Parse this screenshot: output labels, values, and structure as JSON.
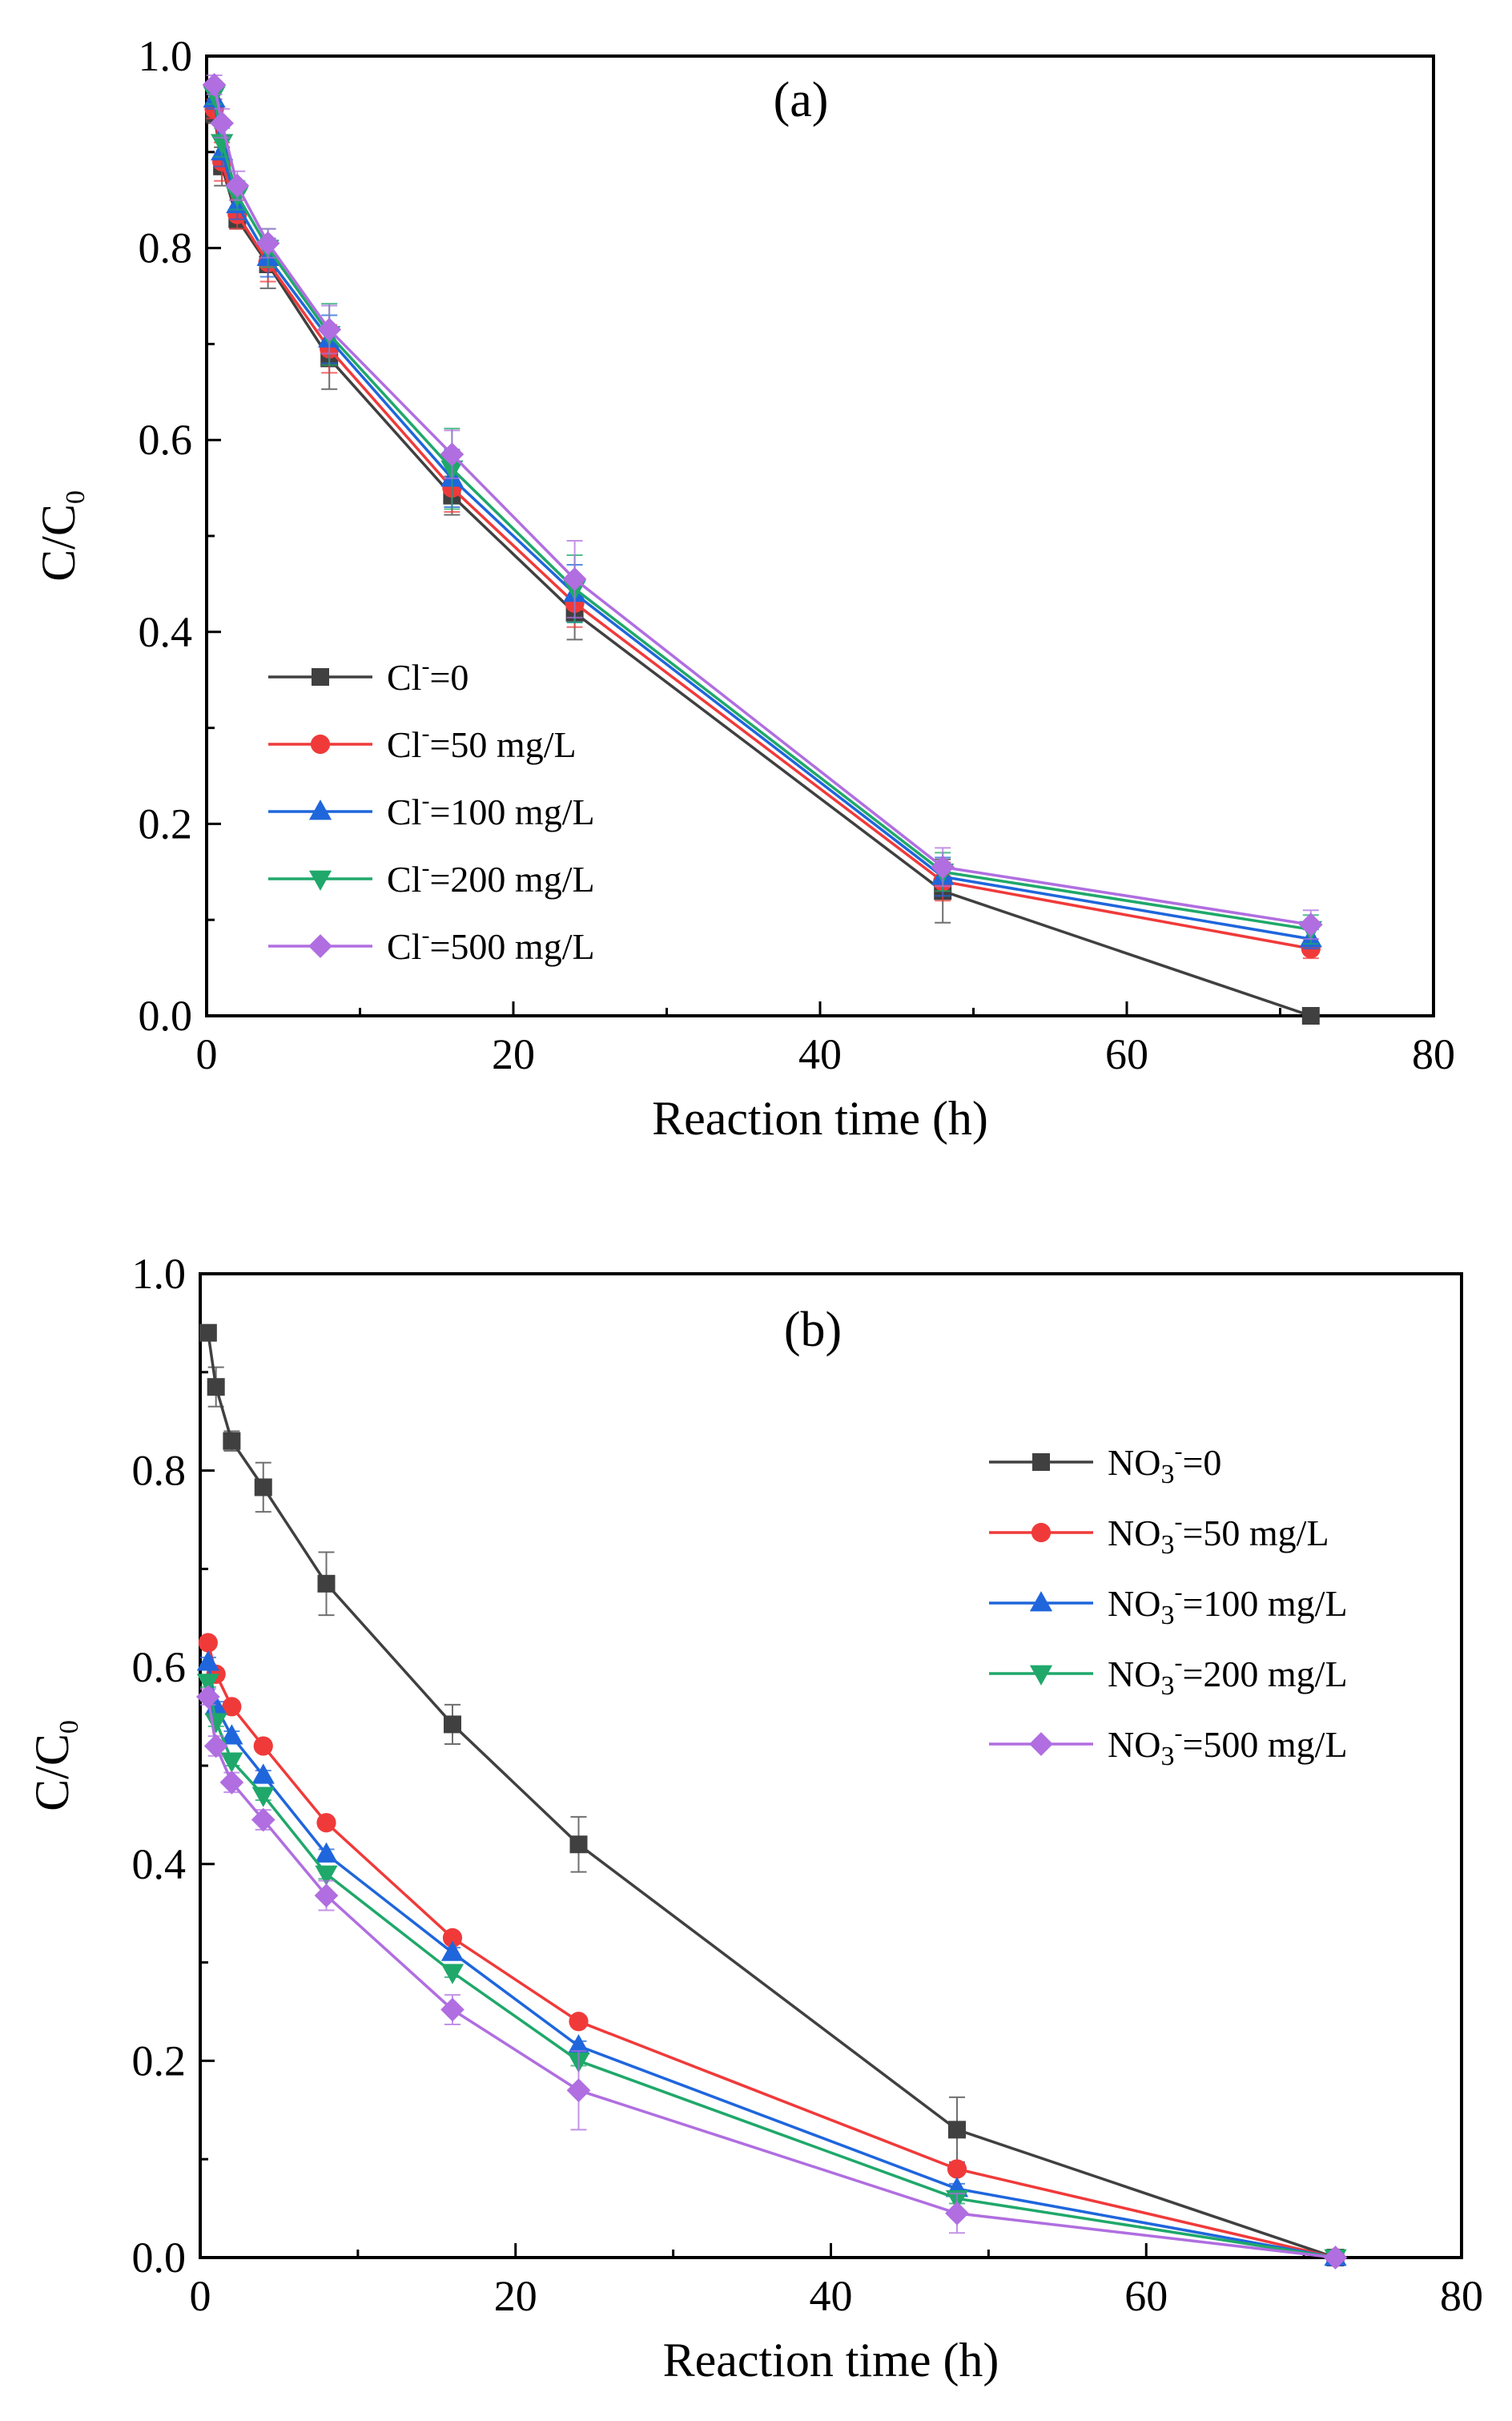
{
  "chart_data": [
    {
      "type": "line",
      "panel_label": "(a)",
      "xlabel": "Reaction time (h)",
      "ylabel": "C/C0",
      "xlim": [
        0,
        80
      ],
      "ylim": [
        0.0,
        1.0
      ],
      "x_ticks": [
        "0",
        "20",
        "40",
        "60",
        "80"
      ],
      "y_ticks": [
        "0.0",
        "0.2",
        "0.4",
        "0.6",
        "0.8",
        "1.0"
      ],
      "legend_position": "center-left",
      "x": [
        0.5,
        1,
        2,
        4,
        8,
        16,
        24,
        48,
        72
      ],
      "series": [
        {
          "name": "Cl-=0",
          "label_base": "Cl",
          "label_sup": "-",
          "label_rest": "=0",
          "marker": "square",
          "color": "#404040",
          "values": [
            0.94,
            0.885,
            0.83,
            0.783,
            0.685,
            0.542,
            0.42,
            0.13,
            0.0
          ],
          "errors": [
            0.01,
            0.02,
            0.01,
            0.025,
            0.032,
            0.02,
            0.028,
            0.033,
            0.003
          ]
        },
        {
          "name": "Cl-=50 mg/L",
          "label_base": "Cl",
          "label_sup": "-",
          "label_rest": "=50 mg/L",
          "marker": "circle",
          "color": "#f03a3a",
          "values": [
            0.945,
            0.89,
            0.835,
            0.785,
            0.695,
            0.55,
            0.43,
            0.14,
            0.07
          ],
          "errors": [
            0.01,
            0.02,
            0.015,
            0.02,
            0.025,
            0.025,
            0.025,
            0.02,
            0.01
          ]
        },
        {
          "name": "Cl-=100 mg/L",
          "label_base": "Cl",
          "label_sup": "-",
          "label_rest": "=100 mg/L",
          "marker": "triangle-up",
          "color": "#1f66dc",
          "values": [
            0.955,
            0.9,
            0.845,
            0.79,
            0.705,
            0.56,
            0.44,
            0.145,
            0.08
          ],
          "errors": [
            0.01,
            0.015,
            0.015,
            0.02,
            0.025,
            0.03,
            0.03,
            0.02,
            0.01
          ]
        },
        {
          "name": "Cl-=200 mg/L",
          "label_base": "Cl",
          "label_sup": "-",
          "label_rest": "=200 mg/L",
          "marker": "triangle-down",
          "color": "#1fa86a",
          "values": [
            0.96,
            0.91,
            0.855,
            0.8,
            0.71,
            0.57,
            0.445,
            0.15,
            0.09
          ],
          "errors": [
            0.01,
            0.015,
            0.015,
            0.02,
            0.032,
            0.042,
            0.035,
            0.02,
            0.015
          ]
        },
        {
          "name": "Cl-=500 mg/L",
          "label_base": "Cl",
          "label_sup": "-",
          "label_rest": "=500 mg/L",
          "marker": "diamond",
          "color": "#b06ee0",
          "values": [
            0.97,
            0.93,
            0.865,
            0.805,
            0.715,
            0.585,
            0.455,
            0.155,
            0.095
          ],
          "errors": [
            0.01,
            0.015,
            0.015,
            0.015,
            0.025,
            0.025,
            0.04,
            0.02,
            0.015
          ]
        }
      ]
    },
    {
      "type": "line",
      "panel_label": "(b)",
      "xlabel": "Reaction time (h)",
      "ylabel": "C/C0",
      "xlim": [
        0,
        80
      ],
      "ylim": [
        0.0,
        1.0
      ],
      "x_ticks": [
        "0",
        "20",
        "40",
        "60",
        "80"
      ],
      "y_ticks": [
        "0.0",
        "0.2",
        "0.4",
        "0.6",
        "0.8",
        "1.0"
      ],
      "legend_position": "right",
      "x": [
        0.5,
        1,
        2,
        4,
        8,
        16,
        24,
        48,
        72
      ],
      "series": [
        {
          "name": "NO3-=0",
          "label_base": "NO",
          "label_sub": "3",
          "label_sup": "-",
          "label_rest": "=0",
          "marker": "square",
          "color": "#404040",
          "values": [
            0.94,
            0.885,
            0.83,
            0.783,
            0.685,
            0.542,
            0.42,
            0.13,
            0.0
          ],
          "errors": [
            0.008,
            0.02,
            0.01,
            0.025,
            0.032,
            0.02,
            0.028,
            0.033,
            0.003
          ]
        },
        {
          "name": "NO3-=50 mg/L",
          "label_base": "NO",
          "label_sub": "3",
          "label_sup": "-",
          "label_rest": "=50 mg/L",
          "marker": "circle",
          "color": "#f03a3a",
          "values": [
            0.625,
            0.593,
            0.56,
            0.52,
            0.442,
            0.325,
            0.24,
            0.09,
            0.0
          ],
          "errors": [
            0.005,
            0.005,
            0.005,
            0.005,
            0.005,
            0.005,
            0.005,
            0.005,
            0.003
          ]
        },
        {
          "name": "NO3-=100 mg/L",
          "label_base": "NO",
          "label_sub": "3",
          "label_sup": "-",
          "label_rest": "=100 mg/L",
          "marker": "triangle-up",
          "color": "#1f66dc",
          "values": [
            0.605,
            0.56,
            0.53,
            0.49,
            0.41,
            0.31,
            0.215,
            0.07,
            0.0
          ],
          "errors": [
            0.005,
            0.005,
            0.005,
            0.005,
            0.005,
            0.005,
            0.005,
            0.005,
            0.003
          ]
        },
        {
          "name": "NO3-=200 mg/L",
          "label_base": "NO",
          "label_sub": "3",
          "label_sup": "-",
          "label_rest": "=200 mg/L",
          "marker": "triangle-down",
          "color": "#1fa86a",
          "values": [
            0.585,
            0.545,
            0.505,
            0.47,
            0.39,
            0.29,
            0.2,
            0.06,
            0.0
          ],
          "errors": [
            0.005,
            0.005,
            0.005,
            0.005,
            0.005,
            0.005,
            0.005,
            0.005,
            0.003
          ]
        },
        {
          "name": "NO3-=500 mg/L",
          "label_base": "NO",
          "label_sub": "3",
          "label_sup": "-",
          "label_rest": "=500 mg/L",
          "marker": "diamond",
          "color": "#b06ee0",
          "values": [
            0.57,
            0.52,
            0.483,
            0.445,
            0.368,
            0.252,
            0.17,
            0.045,
            0.0
          ],
          "errors": [
            0.008,
            0.01,
            0.01,
            0.01,
            0.015,
            0.015,
            0.04,
            0.02,
            0.003
          ]
        }
      ]
    }
  ]
}
